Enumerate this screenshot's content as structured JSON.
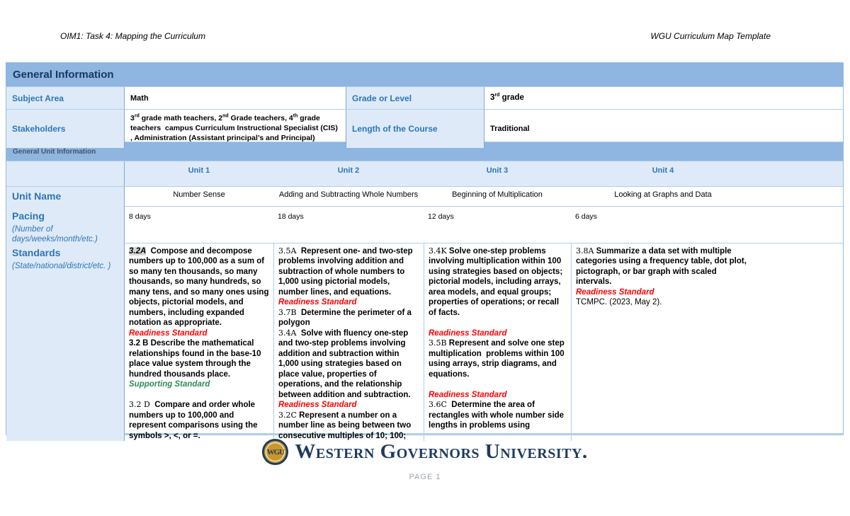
{
  "colors": {
    "band_bg": "#8FB5E1",
    "band_title": "#17375E",
    "band_subtitle": "#44546A",
    "label_bg": "#DEEAF8",
    "label_text": "#2E75B6",
    "border_v": "#7FA8D4",
    "border_h": "#AFCDEA",
    "outer": "#95B9DF",
    "red": "#FF0000",
    "green": "#2E8B57",
    "code_hl_bg": "#D9D9D9",
    "text": "#000000",
    "footer_navy": "#1E3A5F",
    "logo_gold": "#C9972C",
    "page_num": "#9CA3AA"
  },
  "header": {
    "left": "OIM1: Task 4: Mapping the Curriculum",
    "right": "WGU Curriculum Map Template"
  },
  "general_information": {
    "title": "General Information",
    "subject_area_label": "Subject Area",
    "subject_area_value": "Math",
    "grade_label": "Grade or Level",
    "grade_value": [
      [
        {
          "style": "b",
          "text": "3"
        },
        {
          "style": "sup",
          "text": "rd"
        },
        {
          "style": "b",
          "text": " grade"
        }
      ]
    ],
    "stakeholders_label": "Stakeholders",
    "stakeholders_value": [
      [
        {
          "style": "b",
          "text": "3"
        },
        {
          "style": "sup",
          "text": "rd"
        },
        {
          "style": "b",
          "text": " grade math teachers, 2"
        },
        {
          "style": "sup",
          "text": "nd"
        },
        {
          "style": "b",
          "text": " Grade teachers, 4"
        },
        {
          "style": "sup",
          "text": "th"
        },
        {
          "style": "b",
          "text": " grade teachers  campus Curriculum Instructional Specialist (CIS) , Administration (Assistant principal’s and Principal)"
        }
      ]
    ],
    "length_label": "Length of the Course",
    "length_value": "Traditional"
  },
  "unit_section": {
    "title": "General Unit Information",
    "headers": [
      "Unit 1",
      "Unit 2",
      "Unit 3",
      "Unit 4"
    ],
    "unit_name_label": "Unit Name",
    "unit_names": [
      "Number Sense",
      "Adding and Subtracting Whole Numbers",
      "Beginning of Multiplication",
      "Looking at Graphs and Data"
    ],
    "pacing_label": "Pacing",
    "pacing_sublabel": "(Number of days/weeks/month/etc.)",
    "pacing_values": [
      "8 days",
      "18 days",
      "12 days",
      "6 days"
    ],
    "standards_label": "Standards",
    "standards_sublabel": "(State/national/district/etc. )"
  },
  "standards": {
    "unit1": [
      [
        {
          "style": "codehl",
          "text": "3.2A"
        },
        {
          "style": "b",
          "text": "  Compose and decompose numbers up to 100,000 as a sum of so many ten thousands, so many thousands, so many hundreds, so many tens, and so many ones using objects, pictorial models, and numbers, including expanded notation as appropriate."
        }
      ],
      [
        {
          "style": "red",
          "text": "Readiness Standard"
        }
      ],
      [
        {
          "style": "b",
          "text": "3.2 B Describe the mathematical relationships found in the base-10 place value system through the hundred thousands place."
        }
      ],
      [
        {
          "style": "green",
          "text": "Supporting Standard"
        }
      ],
      [],
      [
        {
          "style": "code",
          "text": "3.2 D"
        },
        {
          "style": "b",
          "text": "  Compare and order whole numbers up to 100,000 and represent comparisons using the symbols >, <, or =."
        }
      ]
    ],
    "unit2": [
      [
        {
          "style": "code",
          "text": "3.5A"
        },
        {
          "style": "b",
          "text": "  Represent one- and two-step problems involving addition and subtraction of whole numbers to 1,000 using pictorial models, number lines, and equations."
        }
      ],
      [
        {
          "style": "red",
          "text": "Readiness Standard"
        }
      ],
      [
        {
          "style": "code",
          "text": "3.7B"
        },
        {
          "style": "b",
          "text": "  Determine the perimeter of a polygon"
        }
      ],
      [
        {
          "style": "code",
          "text": "3.4A"
        },
        {
          "style": "b",
          "text": "  Solve with fluency one-step and two-step problems involving addition and subtraction within 1,000 using strategies based on place value, properties of operations, and the relationship between addition and subtraction."
        }
      ],
      [
        {
          "style": "red",
          "text": "Readiness Standard"
        }
      ],
      [
        {
          "style": "code",
          "text": "3.2C"
        },
        {
          "style": "b",
          "text": " Represent a number on a number line as being between two consecutive multiples of 10; 100;"
        }
      ]
    ],
    "unit3": [
      [
        {
          "style": "code",
          "text": "3.4K"
        },
        {
          "style": "b",
          "text": " Solve one-step problems involving multiplication within 100 using strategies based on objects; pictorial models, including arrays, area models, and equal groups; properties of operations; or recall of facts."
        }
      ],
      [],
      [
        {
          "style": "red",
          "text": "Readiness Standard"
        }
      ],
      [
        {
          "style": "code",
          "text": "3.5B"
        },
        {
          "style": "b",
          "text": " Represent and solve one step multiplication  problems within 100 using arrays, strip diagrams, and equations."
        }
      ],
      [],
      [
        {
          "style": "red",
          "text": "Readiness Standard"
        }
      ],
      [
        {
          "style": "code",
          "text": "3.6C"
        },
        {
          "style": "b",
          "text": "  Determine the area of rectangles with whole number side lengths in problems using"
        }
      ]
    ],
    "unit4": [
      [
        {
          "style": "code",
          "text": "3.8A"
        },
        {
          "style": "b",
          "text": " Summarize a data set with multiple categories using a frequency table, dot plot, pictograph, or bar graph with scaled intervals."
        }
      ],
      [
        {
          "style": "red",
          "text": "Readiness Standard"
        }
      ],
      [
        {
          "style": "plain",
          "text": "TCMPC. (2023, May 2)."
        }
      ]
    ]
  },
  "footer": {
    "logo_monogram": "WGU",
    "logo_wordmark": "Western Governors University.",
    "page_number": "PAGE 1"
  }
}
